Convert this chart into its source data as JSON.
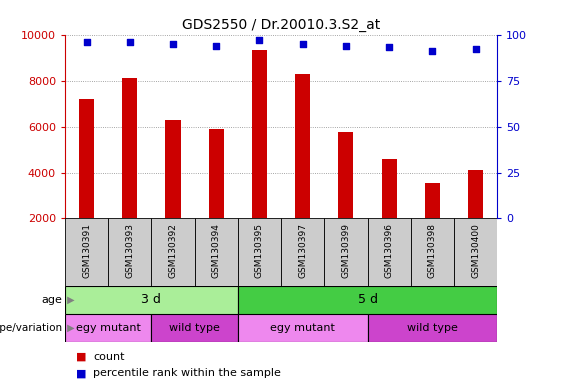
{
  "title": "GDS2550 / Dr.20010.3.S2_at",
  "samples": [
    "GSM130391",
    "GSM130393",
    "GSM130392",
    "GSM130394",
    "GSM130395",
    "GSM130397",
    "GSM130399",
    "GSM130396",
    "GSM130398",
    "GSM130400"
  ],
  "counts": [
    7200,
    8100,
    6300,
    5900,
    9350,
    8300,
    5750,
    4600,
    3550,
    4100
  ],
  "percentiles": [
    96,
    96,
    95,
    94,
    97,
    95,
    94,
    93,
    91,
    92
  ],
  "ylim_left": [
    2000,
    10000
  ],
  "ylim_right": [
    0,
    100
  ],
  "yticks_left": [
    2000,
    4000,
    6000,
    8000,
    10000
  ],
  "yticks_right": [
    0,
    25,
    50,
    75,
    100
  ],
  "bar_color": "#cc0000",
  "scatter_color": "#0000cc",
  "age_segs": [
    {
      "start": 0,
      "end": 4,
      "label": "3 d",
      "color": "#aaee99"
    },
    {
      "start": 4,
      "end": 10,
      "label": "5 d",
      "color": "#44cc44"
    }
  ],
  "gen_segs": [
    {
      "start": 0,
      "end": 2,
      "label": "egy mutant",
      "color": "#ee88ee"
    },
    {
      "start": 2,
      "end": 4,
      "label": "wild type",
      "color": "#cc44cc"
    },
    {
      "start": 4,
      "end": 7,
      "label": "egy mutant",
      "color": "#ee88ee"
    },
    {
      "start": 7,
      "end": 10,
      "label": "wild type",
      "color": "#cc44cc"
    }
  ],
  "tick_color_left": "#cc0000",
  "tick_color_right": "#0000cc",
  "grid_color": "#888888",
  "bg_color": "#ffffff",
  "label_row_bg": "#cccccc",
  "bar_width": 0.35
}
